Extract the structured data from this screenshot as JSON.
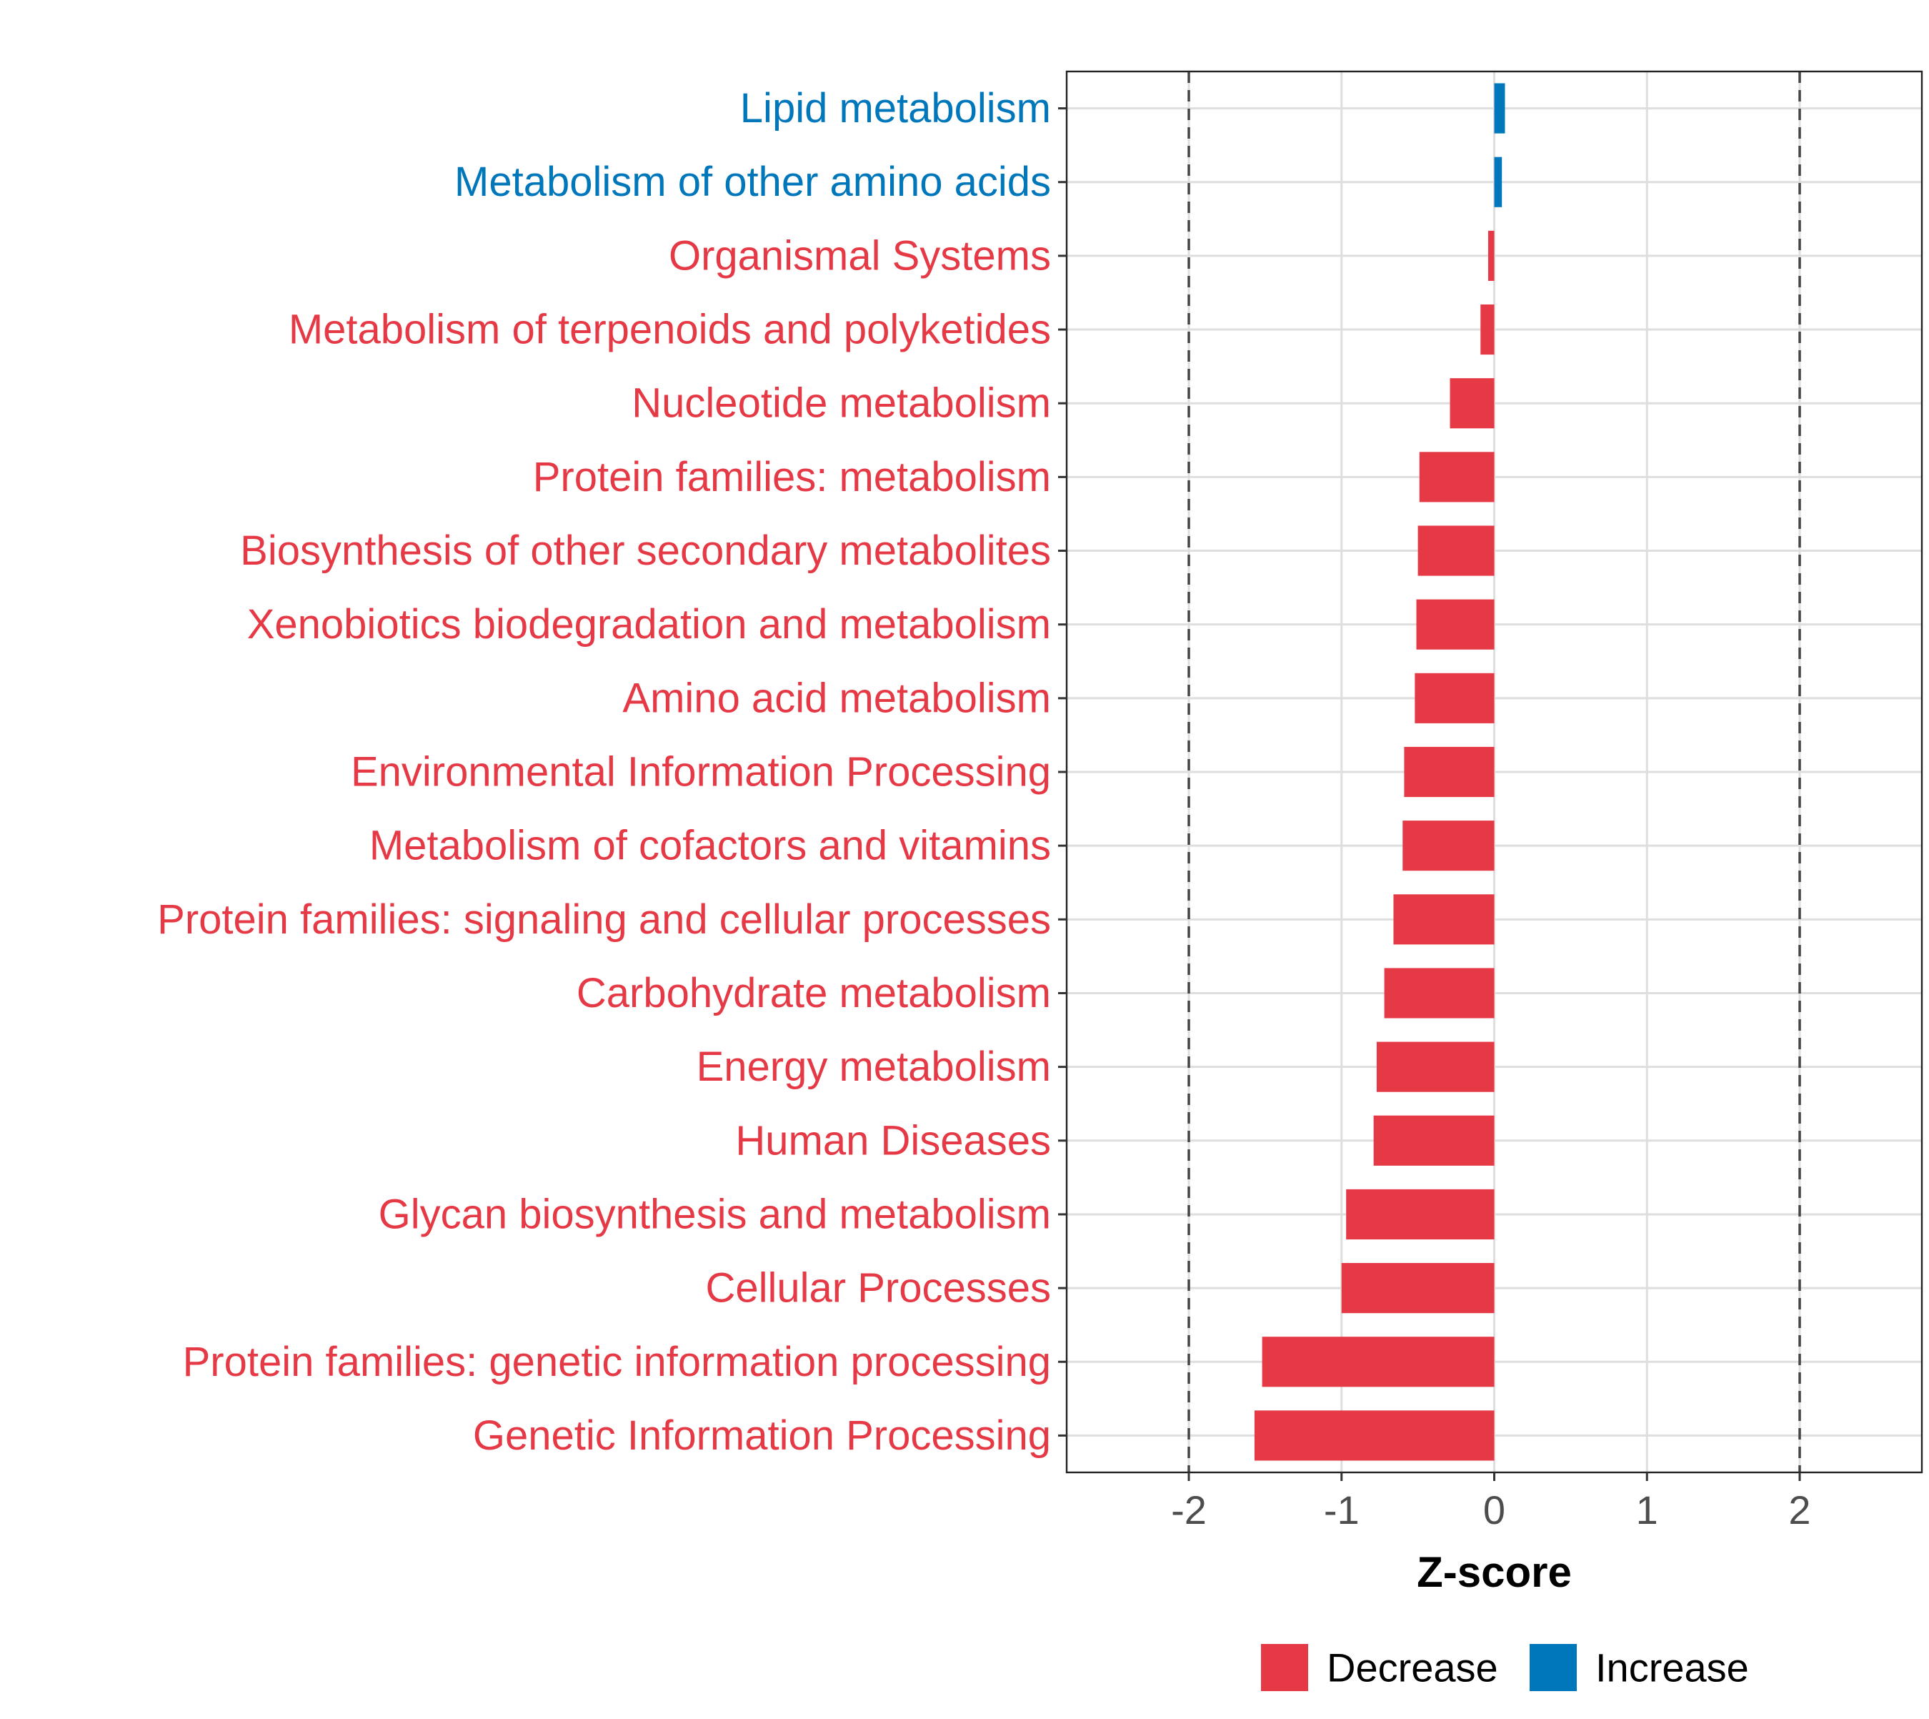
{
  "chart_data": {
    "type": "bar",
    "orientation": "horizontal",
    "title": "",
    "xlabel": "Z-score",
    "ylabel": "",
    "xlim": [
      -2.8,
      2.8
    ],
    "x_ticks": [
      -2,
      -1,
      0,
      1,
      2
    ],
    "x_tick_labels": [
      "-2",
      "-1",
      "0",
      "1",
      "2"
    ],
    "reference_lines": [
      -2,
      2
    ],
    "grid": true,
    "legend_position": "bottom",
    "legend": [
      {
        "name": "Decrease",
        "color": "#E63946"
      },
      {
        "name": "Increase",
        "color": "#0077BB"
      }
    ],
    "categories": [
      "Lipid metabolism",
      "Metabolism of other amino acids",
      "Organismal Systems",
      "Metabolism of terpenoids and polyketides",
      "Nucleotide metabolism",
      "Protein families: metabolism",
      "Biosynthesis of other secondary metabolites",
      "Xenobiotics biodegradation and metabolism",
      "Amino acid metabolism",
      "Environmental Information Processing",
      "Metabolism of cofactors and vitamins",
      "Protein families: signaling and cellular processes",
      "Carbohydrate metabolism",
      "Energy metabolism",
      "Human Diseases",
      "Glycan biosynthesis and metabolism",
      "Cellular Processes",
      "Protein families: genetic information processing",
      "Genetic Information Processing"
    ],
    "values": [
      0.07,
      0.05,
      -0.04,
      -0.09,
      -0.29,
      -0.49,
      -0.5,
      -0.51,
      -0.52,
      -0.59,
      -0.6,
      -0.66,
      -0.72,
      -0.77,
      -0.79,
      -0.97,
      -1.0,
      -1.52,
      -1.57
    ],
    "groups": [
      "Increase",
      "Increase",
      "Decrease",
      "Decrease",
      "Decrease",
      "Decrease",
      "Decrease",
      "Decrease",
      "Decrease",
      "Decrease",
      "Decrease",
      "Decrease",
      "Decrease",
      "Decrease",
      "Decrease",
      "Decrease",
      "Decrease",
      "Decrease",
      "Decrease"
    ]
  }
}
